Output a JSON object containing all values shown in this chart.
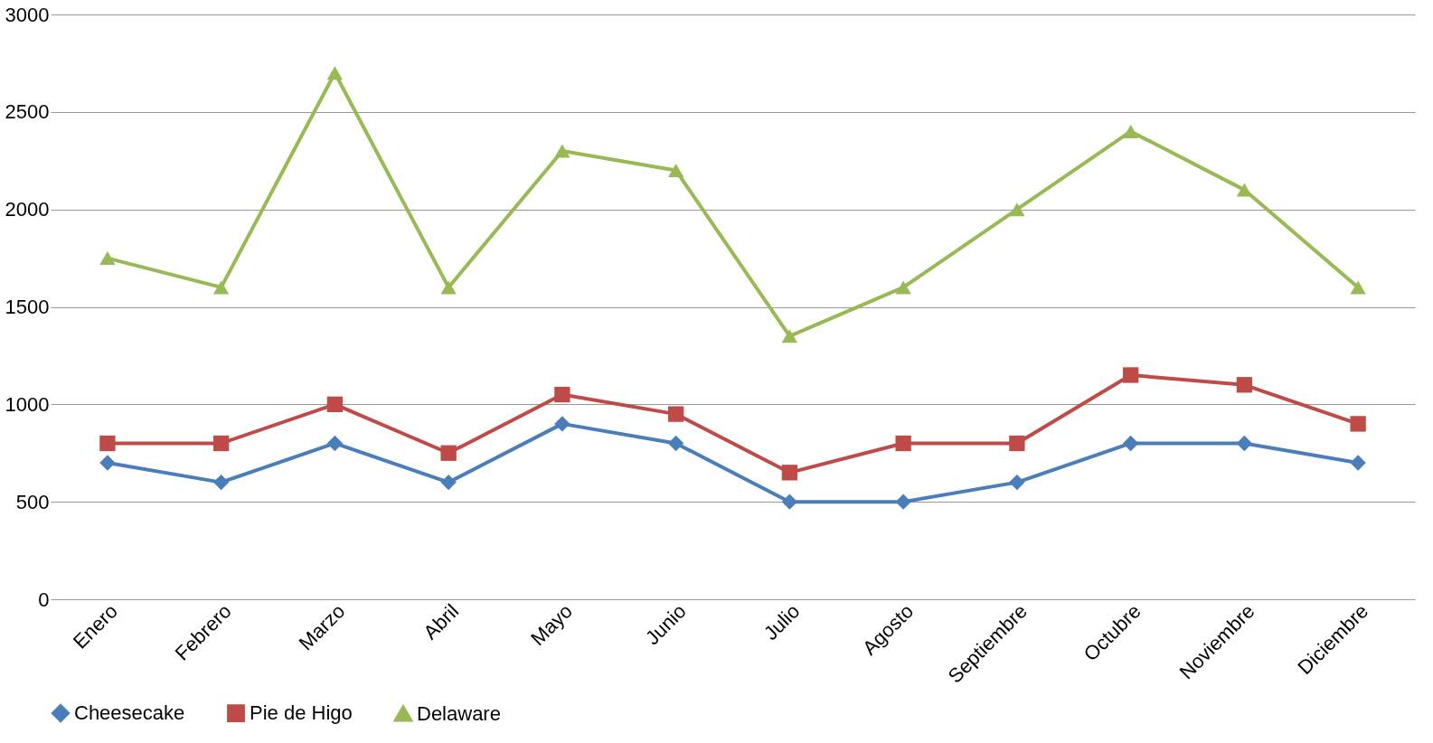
{
  "chart_data": {
    "type": "line",
    "categories": [
      "Enero",
      "Febrero",
      "Marzo",
      "Abril",
      "Mayo",
      "Junio",
      "Julio",
      "Agosto",
      "Septiembre",
      "Octubre",
      "Noviembre",
      "Diciembre"
    ],
    "series": [
      {
        "name": "Cheesecake",
        "color": "#4a7ebb",
        "marker": "diamond",
        "values": [
          700,
          600,
          800,
          600,
          900,
          800,
          500,
          500,
          600,
          800,
          800,
          700
        ]
      },
      {
        "name": "Pie de Higo",
        "color": "#be4b48",
        "marker": "square",
        "values": [
          800,
          800,
          1000,
          750,
          1050,
          950,
          650,
          800,
          800,
          1150,
          1100,
          900
        ]
      },
      {
        "name": "Delaware",
        "color": "#98b954",
        "marker": "triangle",
        "values": [
          1750,
          1600,
          2700,
          1600,
          2300,
          2200,
          1350,
          1600,
          2000,
          2400,
          2100,
          1600
        ]
      }
    ],
    "ylim": [
      0,
      3000
    ],
    "yticks": [
      0,
      500,
      1000,
      1500,
      2000,
      2500,
      3000
    ],
    "grid": "y",
    "legend": "bottom",
    "line_style": "solid"
  }
}
